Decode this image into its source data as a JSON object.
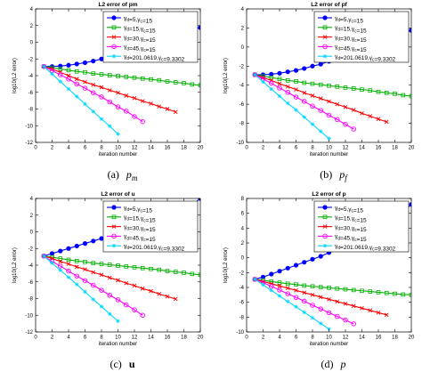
{
  "chart_data": [
    {
      "type": "line",
      "title": "L2 error of pm",
      "caption": {
        "label": "(a)",
        "symbol": "p",
        "sub": "m"
      },
      "xlabel": "iteration number",
      "ylabel": "log10(L2 error)",
      "xlim": [
        0,
        20
      ],
      "ylim": [
        -12,
        4
      ],
      "xticks": [
        0,
        2,
        4,
        6,
        8,
        10,
        12,
        14,
        16,
        18,
        20
      ],
      "yticks": [
        -12,
        -10,
        -8,
        -6,
        -4,
        -2,
        0,
        2,
        4
      ],
      "grid": false,
      "legend": "top-right",
      "series": [
        {
          "name": "γd=5,γc=15",
          "color": "#0000ff",
          "marker": "dot",
          "x": [
            1,
            2,
            3,
            4,
            5,
            6,
            7,
            8,
            9,
            10,
            11,
            12,
            13,
            14,
            15,
            16,
            17,
            18,
            19,
            20
          ],
          "y": [
            -2.9,
            -2.9,
            -2.85,
            -2.75,
            -2.6,
            -2.45,
            -2.25,
            -2.0,
            -1.8,
            -1.5,
            -1.25,
            -0.95,
            -0.65,
            -0.35,
            -0.05,
            0.3,
            0.65,
            1.05,
            1.45,
            1.75
          ]
        },
        {
          "name": "γd=15,γc=15",
          "color": "#00b000",
          "marker": "square",
          "x": [
            1,
            2,
            3,
            4,
            5,
            6,
            7,
            8,
            9,
            10,
            11,
            12,
            13,
            14,
            15,
            16,
            17,
            18,
            19,
            20
          ],
          "y": [
            -2.9,
            -3.05,
            -3.2,
            -3.35,
            -3.5,
            -3.6,
            -3.75,
            -3.85,
            -3.95,
            -4.05,
            -4.15,
            -4.25,
            -4.35,
            -4.45,
            -4.55,
            -4.7,
            -4.8,
            -4.9,
            -5.05,
            -5.15
          ]
        },
        {
          "name": "γd=30,γc=15",
          "color": "#ff0000",
          "marker": "x",
          "x": [
            1,
            2,
            3,
            4,
            5,
            6,
            7,
            8,
            9,
            10,
            11,
            12,
            13,
            14,
            15,
            16,
            17
          ],
          "y": [
            -2.9,
            -3.2,
            -3.6,
            -4.0,
            -4.4,
            -4.75,
            -5.1,
            -5.4,
            -5.75,
            -6.05,
            -6.4,
            -6.7,
            -7.05,
            -7.35,
            -7.7,
            -8.0,
            -8.35
          ]
        },
        {
          "name": "γd=45,γc=15",
          "color": "#ff00ff",
          "marker": "circle",
          "x": [
            1,
            2,
            3,
            4,
            5,
            6,
            7,
            8,
            9,
            10,
            11,
            12,
            13
          ],
          "y": [
            -2.9,
            -3.4,
            -3.9,
            -4.4,
            -5.0,
            -5.5,
            -6.05,
            -6.55,
            -7.15,
            -7.75,
            -8.25,
            -8.9,
            -9.5
          ]
        },
        {
          "name": "γd=201.0619,γc=9.3302",
          "color": "#00d8ff",
          "marker": "star",
          "x": [
            1,
            2,
            3,
            4,
            5,
            6,
            7,
            8,
            9,
            10
          ],
          "y": [
            -2.9,
            -3.8,
            -4.7,
            -5.6,
            -6.5,
            -7.4,
            -8.3,
            -9.2,
            -10.05,
            -11.0
          ]
        }
      ]
    },
    {
      "type": "line",
      "title": "L2 error of pf",
      "caption": {
        "label": "(b)",
        "symbol": "p",
        "sub": "f"
      },
      "xlabel": "iteration number",
      "ylabel": "log10(L2 error)",
      "xlim": [
        0,
        20
      ],
      "ylim": [
        -10,
        4
      ],
      "xticks": [
        0,
        2,
        4,
        6,
        8,
        10,
        12,
        14,
        16,
        18,
        20
      ],
      "yticks": [
        -10,
        -8,
        -6,
        -4,
        -2,
        0,
        2,
        4
      ],
      "grid": false,
      "legend": "top-right",
      "series": [
        {
          "name": "γd=5,γc=15",
          "color": "#0000ff",
          "marker": "dot",
          "x": [
            1,
            2,
            3,
            4,
            5,
            6,
            7,
            8,
            9,
            10,
            11,
            12,
            13,
            14,
            15,
            16,
            17,
            18,
            19,
            20
          ],
          "y": [
            -2.9,
            -2.9,
            -2.85,
            -2.75,
            -2.6,
            -2.45,
            -2.25,
            -2.0,
            -1.8,
            -1.5,
            -1.25,
            -0.95,
            -0.65,
            -0.35,
            -0.05,
            0.3,
            0.65,
            1.05,
            1.45,
            1.75
          ]
        },
        {
          "name": "γd=15,γc=15",
          "color": "#00b000",
          "marker": "square",
          "x": [
            1,
            2,
            3,
            4,
            5,
            6,
            7,
            8,
            9,
            10,
            11,
            12,
            13,
            14,
            15,
            16,
            17,
            18,
            19,
            20
          ],
          "y": [
            -2.9,
            -3.05,
            -3.2,
            -3.35,
            -3.5,
            -3.6,
            -3.75,
            -3.85,
            -3.95,
            -4.05,
            -4.15,
            -4.25,
            -4.35,
            -4.45,
            -4.55,
            -4.7,
            -4.8,
            -4.9,
            -5.05,
            -5.15
          ]
        },
        {
          "name": "γd=30,γc=15",
          "color": "#ff0000",
          "marker": "x",
          "x": [
            1,
            2,
            3,
            4,
            5,
            6,
            7,
            8,
            9,
            10,
            11,
            12,
            13,
            14,
            15,
            16,
            17
          ],
          "y": [
            -2.9,
            -3.2,
            -3.5,
            -3.85,
            -4.15,
            -4.45,
            -4.8,
            -5.1,
            -5.4,
            -5.7,
            -6.0,
            -6.3,
            -6.6,
            -6.95,
            -7.25,
            -7.55,
            -7.85
          ]
        },
        {
          "name": "γd=45,γc=15",
          "color": "#ff00ff",
          "marker": "circle",
          "x": [
            1,
            2,
            3,
            4,
            5,
            6,
            7,
            8,
            9,
            10,
            11,
            12,
            13
          ],
          "y": [
            -2.9,
            -3.35,
            -3.8,
            -4.3,
            -4.75,
            -5.25,
            -5.7,
            -6.2,
            -6.65,
            -7.15,
            -7.6,
            -8.1,
            -8.6
          ]
        },
        {
          "name": "γd=201.0619,γc=9.3302",
          "color": "#00d8ff",
          "marker": "star",
          "x": [
            1,
            2,
            3,
            4,
            5,
            6,
            7,
            8,
            9,
            10
          ],
          "y": [
            -2.9,
            -3.65,
            -4.4,
            -5.15,
            -5.9,
            -6.6,
            -7.35,
            -8.1,
            -8.85,
            -9.6
          ]
        }
      ]
    },
    {
      "type": "line",
      "title": "L2 error of u",
      "caption": {
        "label": "(c)",
        "symbol": "u",
        "sub": ""
      },
      "xlabel": "iteration number",
      "ylabel": "log10(L2 error)",
      "xlim": [
        0,
        20
      ],
      "ylim": [
        -12,
        4
      ],
      "xticks": [
        0,
        2,
        4,
        6,
        8,
        10,
        12,
        14,
        16,
        18,
        20
      ],
      "yticks": [
        -12,
        -10,
        -8,
        -6,
        -4,
        -2,
        0,
        2,
        4
      ],
      "grid": false,
      "legend": "top-right",
      "series": [
        {
          "name": "γd=5,γc=15",
          "color": "#0000ff",
          "marker": "dot",
          "x": [
            1,
            2,
            3,
            4,
            5,
            6,
            7,
            8,
            9,
            10,
            11,
            12,
            13,
            14,
            15,
            16,
            17,
            18,
            19,
            20
          ],
          "y": [
            -2.9,
            -2.6,
            -2.3,
            -2.0,
            -1.7,
            -1.4,
            -1.1,
            -0.8,
            -0.5,
            -0.2,
            0.1,
            0.4,
            0.7,
            1.0,
            1.3,
            1.6,
            2.0,
            2.6,
            3.2,
            4.0
          ]
        },
        {
          "name": "γd=15,γc=15",
          "color": "#00b000",
          "marker": "square",
          "x": [
            1,
            2,
            3,
            4,
            5,
            6,
            7,
            8,
            9,
            10,
            11,
            12,
            13,
            14,
            15,
            16,
            17,
            18,
            19,
            20
          ],
          "y": [
            -2.9,
            -3.05,
            -3.2,
            -3.35,
            -3.5,
            -3.6,
            -3.75,
            -3.85,
            -3.95,
            -4.05,
            -4.15,
            -4.25,
            -4.35,
            -4.45,
            -4.55,
            -4.7,
            -4.8,
            -4.9,
            -5.05,
            -5.15
          ]
        },
        {
          "name": "γd=30,γc=15",
          "color": "#ff0000",
          "marker": "x",
          "x": [
            1,
            2,
            3,
            4,
            5,
            6,
            7,
            8,
            9,
            10,
            11,
            12,
            13,
            14,
            15,
            16,
            17
          ],
          "y": [
            -2.9,
            -3.2,
            -3.55,
            -3.85,
            -4.2,
            -4.5,
            -4.85,
            -5.15,
            -5.5,
            -5.8,
            -6.15,
            -6.45,
            -6.8,
            -7.1,
            -7.45,
            -7.75,
            -8.05
          ]
        },
        {
          "name": "γd=45,γc=15",
          "color": "#ff00ff",
          "marker": "circle",
          "x": [
            1,
            2,
            3,
            4,
            5,
            6,
            7,
            8,
            9,
            10,
            11,
            12,
            13
          ],
          "y": [
            -2.9,
            -3.55,
            -4.1,
            -4.7,
            -5.3,
            -5.85,
            -6.4,
            -7.0,
            -7.6,
            -8.15,
            -8.75,
            -9.35,
            -10.0
          ]
        },
        {
          "name": "γd=201.0619,γc=9.3302",
          "color": "#00d8ff",
          "marker": "star",
          "x": [
            1,
            2,
            3,
            4,
            5,
            6,
            7,
            8,
            9,
            10
          ],
          "y": [
            -2.9,
            -3.75,
            -4.6,
            -5.45,
            -6.3,
            -7.2,
            -8.1,
            -8.95,
            -9.85,
            -10.7
          ]
        }
      ]
    },
    {
      "type": "line",
      "title": "L2 error of p",
      "caption": {
        "label": "(d)",
        "symbol": "p",
        "sub": ""
      },
      "xlabel": "iteration number",
      "ylabel": "log10(L2 error)",
      "xlim": [
        0,
        20
      ],
      "ylim": [
        -10,
        8
      ],
      "xticks": [
        0,
        2,
        4,
        6,
        8,
        10,
        12,
        14,
        16,
        18,
        20
      ],
      "yticks": [
        -10,
        -8,
        -6,
        -4,
        -2,
        0,
        2,
        4,
        6,
        8
      ],
      "grid": false,
      "legend": "top-right",
      "series": [
        {
          "name": "γd=5,γc=15",
          "color": "#0000ff",
          "marker": "dot",
          "x": [
            1,
            2,
            3,
            4,
            5,
            6,
            7,
            8,
            9,
            10,
            11,
            12,
            13,
            14,
            15,
            16,
            17,
            18,
            19,
            20
          ],
          "y": [
            -2.9,
            -2.6,
            -2.2,
            -1.8,
            -1.4,
            -1.0,
            -0.6,
            -0.2,
            0.2,
            0.7,
            1.1,
            1.6,
            2.1,
            2.6,
            3.2,
            3.8,
            4.5,
            5.3,
            6.2,
            7.2
          ]
        },
        {
          "name": "γd=15,γc=15",
          "color": "#00b000",
          "marker": "square",
          "x": [
            1,
            2,
            3,
            4,
            5,
            6,
            7,
            8,
            9,
            10,
            11,
            12,
            13,
            14,
            15,
            16,
            17,
            18,
            19,
            20
          ],
          "y": [
            -2.9,
            -3.05,
            -3.2,
            -3.35,
            -3.5,
            -3.6,
            -3.75,
            -3.85,
            -3.95,
            -4.05,
            -4.15,
            -4.25,
            -4.35,
            -4.45,
            -4.55,
            -4.65,
            -4.75,
            -4.85,
            -4.95,
            -5.0
          ]
        },
        {
          "name": "γd=30,γc=15",
          "color": "#ff0000",
          "marker": "x",
          "x": [
            1,
            2,
            3,
            4,
            5,
            6,
            7,
            8,
            9,
            10,
            11,
            12,
            13,
            14,
            15,
            16,
            17
          ],
          "y": [
            -2.9,
            -3.2,
            -3.5,
            -3.8,
            -4.1,
            -4.4,
            -4.7,
            -5.0,
            -5.3,
            -5.6,
            -5.9,
            -6.2,
            -6.5,
            -6.8,
            -7.1,
            -7.4,
            -7.7
          ]
        },
        {
          "name": "γd=45,γc=15",
          "color": "#ff00ff",
          "marker": "circle",
          "x": [
            1,
            2,
            3,
            4,
            5,
            6,
            7,
            8,
            9,
            10,
            11,
            12,
            13
          ],
          "y": [
            -2.9,
            -3.35,
            -3.85,
            -4.35,
            -4.85,
            -5.35,
            -5.85,
            -6.4,
            -6.9,
            -7.4,
            -7.9,
            -8.4,
            -8.9
          ]
        },
        {
          "name": "γd=201.0619,γc=9.3302",
          "color": "#00d8ff",
          "marker": "star",
          "x": [
            1,
            2,
            3,
            4,
            5,
            6,
            7,
            8,
            9,
            10
          ],
          "y": [
            -2.9,
            -3.65,
            -4.4,
            -5.15,
            -5.9,
            -6.6,
            -7.35,
            -8.1,
            -8.85,
            -9.6
          ]
        }
      ]
    }
  ]
}
